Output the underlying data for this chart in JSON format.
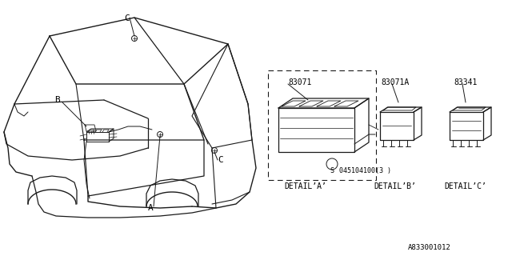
{
  "bg_color": "#ffffff",
  "line_color": "#1a1a1a",
  "text_color": "#000000",
  "fig_width": 6.4,
  "fig_height": 3.2,
  "dpi": 100,
  "part_numbers": {
    "main_switch": "83071",
    "detail_b_part": "83071A",
    "detail_c_part": "83341",
    "screw": "045104100(3 )"
  },
  "detail_labels": [
    "DETAIL*A*",
    "DETAIL*B*",
    "DETAIL*C*"
  ],
  "bottom_code": "A833001012"
}
